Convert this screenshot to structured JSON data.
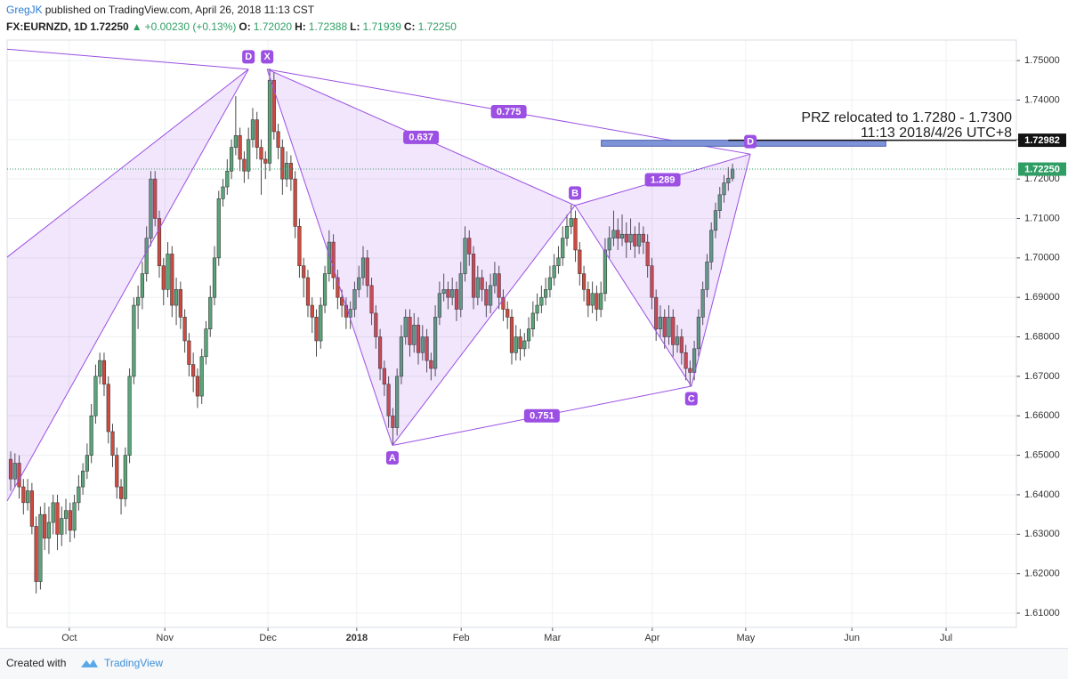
{
  "header": {
    "author": "GregJK",
    "published": "published on TradingView.com, April 26, 2018 11:13 CST",
    "symbol": "FX:EURNZD, 1D",
    "price": "1.72250",
    "change": "+0.00230 (+0.13%)",
    "fields": [
      {
        "name": "O:",
        "value": "1.72020"
      },
      {
        "name": "H:",
        "value": "1.72388"
      },
      {
        "name": "L:",
        "value": "1.71939"
      },
      {
        "name": "C:",
        "value": "1.72250"
      }
    ]
  },
  "footer": {
    "created": "Created with",
    "brand": "TradingView"
  },
  "chart_data": {
    "type": "candlestick",
    "up_color": "#5aa57a",
    "down_color": "#cf4a3f",
    "grid": true,
    "xlim": [
      -0.84,
      236.85
    ],
    "ylim": [
      1.6064,
      1.7552
    ],
    "xticks": [
      {
        "value": 13.8,
        "label": "Oct"
      },
      {
        "value": 36.3,
        "label": "Nov"
      },
      {
        "value": 60.6,
        "label": "Dec"
      },
      {
        "value": 81.5,
        "label": "2018"
      },
      {
        "value": 106.1,
        "label": "Feb"
      },
      {
        "value": 127.6,
        "label": "Mar"
      },
      {
        "value": 151.1,
        "label": "Apr"
      },
      {
        "value": 173.1,
        "label": "May"
      },
      {
        "value": 198.1,
        "label": "Jun"
      },
      {
        "value": 220.3,
        "label": "Jul"
      }
    ],
    "yticks": [
      {
        "value": 1.61,
        "label": "1.61000"
      },
      {
        "value": 1.62,
        "label": "1.62000"
      },
      {
        "value": 1.63,
        "label": "1.63000"
      },
      {
        "value": 1.64,
        "label": "1.64000"
      },
      {
        "value": 1.65,
        "label": "1.65000"
      },
      {
        "value": 1.66,
        "label": "1.66000"
      },
      {
        "value": 1.67,
        "label": "1.67000"
      },
      {
        "value": 1.68,
        "label": "1.68000"
      },
      {
        "value": 1.69,
        "label": "1.69000"
      },
      {
        "value": 1.7,
        "label": "1.70000"
      },
      {
        "value": 1.71,
        "label": "1.71000"
      },
      {
        "value": 1.72,
        "label": "1.72000"
      },
      {
        "value": 1.73,
        "label": "1.73000"
      },
      {
        "value": 1.74,
        "label": "1.74000"
      },
      {
        "value": 1.75,
        "label": "1.75000"
      }
    ],
    "ohlc": [
      [
        1.649,
        1.651,
        1.641,
        1.644
      ],
      [
        1.644,
        1.6505,
        1.642,
        1.648
      ],
      [
        1.648,
        1.65,
        1.639,
        1.642
      ],
      [
        1.642,
        1.644,
        1.635,
        1.638
      ],
      [
        1.638,
        1.644,
        1.636,
        1.641
      ],
      [
        1.641,
        1.643,
        1.63,
        1.632
      ],
      [
        1.632,
        1.6345,
        1.615,
        1.618
      ],
      [
        1.618,
        1.637,
        1.616,
        1.635
      ],
      [
        1.635,
        1.638,
        1.626,
        1.629
      ],
      [
        1.629,
        1.637,
        1.625,
        1.633
      ],
      [
        1.633,
        1.64,
        1.63,
        1.638
      ],
      [
        1.638,
        1.64,
        1.626,
        1.63
      ],
      [
        1.63,
        1.637,
        1.627,
        1.634
      ],
      [
        1.634,
        1.639,
        1.63,
        1.636
      ],
      [
        1.636,
        1.638,
        1.628,
        1.631
      ],
      [
        1.631,
        1.64,
        1.629,
        1.638
      ],
      [
        1.638,
        1.645,
        1.636,
        1.642
      ],
      [
        1.642,
        1.648,
        1.64,
        1.646
      ],
      [
        1.646,
        1.653,
        1.644,
        1.65
      ],
      [
        1.65,
        1.663,
        1.648,
        1.66
      ],
      [
        1.66,
        1.673,
        1.658,
        1.67
      ],
      [
        1.67,
        1.676,
        1.668,
        1.674
      ],
      [
        1.674,
        1.676,
        1.665,
        1.668
      ],
      [
        1.668,
        1.67,
        1.653,
        1.656
      ],
      [
        1.656,
        1.658,
        1.647,
        1.65
      ],
      [
        1.65,
        1.652,
        1.639,
        1.642
      ],
      [
        1.642,
        1.644,
        1.635,
        1.639
      ],
      [
        1.639,
        1.652,
        1.637,
        1.65
      ],
      [
        1.65,
        1.672,
        1.648,
        1.67
      ],
      [
        1.67,
        1.69,
        1.668,
        1.688
      ],
      [
        1.688,
        1.693,
        1.682,
        1.69
      ],
      [
        1.69,
        1.699,
        1.687,
        1.696
      ],
      [
        1.696,
        1.708,
        1.694,
        1.705
      ],
      [
        1.705,
        1.722,
        1.703,
        1.72
      ],
      [
        1.72,
        1.722,
        1.708,
        1.71
      ],
      [
        1.71,
        1.712,
        1.695,
        1.698
      ],
      [
        1.698,
        1.7,
        1.688,
        1.692
      ],
      [
        1.692,
        1.704,
        1.69,
        1.701
      ],
      [
        1.701,
        1.703,
        1.685,
        1.688
      ],
      [
        1.688,
        1.695,
        1.683,
        1.692
      ],
      [
        1.692,
        1.694,
        1.682,
        1.685
      ],
      [
        1.685,
        1.687,
        1.676,
        1.679
      ],
      [
        1.679,
        1.681,
        1.67,
        1.673
      ],
      [
        1.673,
        1.676,
        1.666,
        1.67
      ],
      [
        1.67,
        1.672,
        1.662,
        1.665
      ],
      [
        1.665,
        1.677,
        1.663,
        1.675
      ],
      [
        1.675,
        1.684,
        1.673,
        1.682
      ],
      [
        1.682,
        1.693,
        1.68,
        1.69
      ],
      [
        1.69,
        1.703,
        1.688,
        1.7
      ],
      [
        1.7,
        1.717,
        1.698,
        1.715
      ],
      [
        1.715,
        1.72,
        1.713,
        1.718
      ],
      [
        1.718,
        1.725,
        1.716,
        1.722
      ],
      [
        1.722,
        1.73,
        1.72,
        1.728
      ],
      [
        1.728,
        1.741,
        1.726,
        1.731
      ],
      [
        1.731,
        1.733,
        1.722,
        1.725
      ],
      [
        1.725,
        1.727,
        1.719,
        1.722
      ],
      [
        1.722,
        1.733,
        1.72,
        1.73
      ],
      [
        1.73,
        1.738,
        1.728,
        1.735
      ],
      [
        1.735,
        1.737,
        1.725,
        1.728
      ],
      [
        1.728,
        1.73,
        1.716,
        1.725
      ],
      [
        1.725,
        1.727,
        1.72,
        1.724
      ],
      [
        1.724,
        1.748,
        1.722,
        1.745
      ],
      [
        1.745,
        1.747,
        1.73,
        1.732
      ],
      [
        1.732,
        1.734,
        1.725,
        1.728
      ],
      [
        1.728,
        1.73,
        1.716,
        1.72
      ],
      [
        1.72,
        1.727,
        1.718,
        1.724
      ],
      [
        1.724,
        1.726,
        1.717,
        1.72
      ],
      [
        1.72,
        1.722,
        1.705,
        1.708
      ],
      [
        1.708,
        1.71,
        1.695,
        1.698
      ],
      [
        1.698,
        1.7,
        1.69,
        1.695
      ],
      [
        1.695,
        1.697,
        1.685,
        1.688
      ],
      [
        1.688,
        1.69,
        1.681,
        1.685
      ],
      [
        1.685,
        1.687,
        1.675,
        1.679
      ],
      [
        1.679,
        1.69,
        1.677,
        1.688
      ],
      [
        1.688,
        1.698,
        1.686,
        1.696
      ],
      [
        1.696,
        1.707,
        1.694,
        1.704
      ],
      [
        1.704,
        1.706,
        1.692,
        1.695
      ],
      [
        1.695,
        1.697,
        1.687,
        1.69
      ],
      [
        1.69,
        1.692,
        1.685,
        1.688
      ],
      [
        1.688,
        1.69,
        1.682,
        1.685
      ],
      [
        1.685,
        1.689,
        1.682,
        1.687
      ],
      [
        1.687,
        1.694,
        1.685,
        1.692
      ],
      [
        1.692,
        1.698,
        1.69,
        1.695
      ],
      [
        1.695,
        1.703,
        1.693,
        1.7
      ],
      [
        1.7,
        1.702,
        1.69,
        1.693
      ],
      [
        1.693,
        1.695,
        1.683,
        1.686
      ],
      [
        1.686,
        1.688,
        1.677,
        1.68
      ],
      [
        1.68,
        1.682,
        1.669,
        1.672
      ],
      [
        1.672,
        1.674,
        1.665,
        1.668
      ],
      [
        1.668,
        1.67,
        1.657,
        1.66
      ],
      [
        1.66,
        1.662,
        1.6525,
        1.657
      ],
      [
        1.657,
        1.672,
        1.655,
        1.67
      ],
      [
        1.67,
        1.683,
        1.668,
        1.68
      ],
      [
        1.68,
        1.687,
        1.678,
        1.685
      ],
      [
        1.685,
        1.687,
        1.675,
        1.678
      ],
      [
        1.678,
        1.686,
        1.676,
        1.683
      ],
      [
        1.683,
        1.685,
        1.673,
        1.676
      ],
      [
        1.676,
        1.683,
        1.674,
        1.68
      ],
      [
        1.68,
        1.682,
        1.671,
        1.674
      ],
      [
        1.674,
        1.676,
        1.669,
        1.672
      ],
      [
        1.672,
        1.688,
        1.67,
        1.685
      ],
      [
        1.685,
        1.694,
        1.683,
        1.691
      ],
      [
        1.691,
        1.696,
        1.689,
        1.692
      ],
      [
        1.692,
        1.694,
        1.687,
        1.69
      ],
      [
        1.69,
        1.695,
        1.688,
        1.692
      ],
      [
        1.692,
        1.694,
        1.684,
        1.687
      ],
      [
        1.687,
        1.699,
        1.685,
        1.696
      ],
      [
        1.696,
        1.708,
        1.694,
        1.705
      ],
      [
        1.705,
        1.707,
        1.698,
        1.701
      ],
      [
        1.701,
        1.703,
        1.687,
        1.69
      ],
      [
        1.69,
        1.698,
        1.688,
        1.695
      ],
      [
        1.695,
        1.697,
        1.689,
        1.692
      ],
      [
        1.692,
        1.694,
        1.685,
        1.688
      ],
      [
        1.688,
        1.696,
        1.686,
        1.693
      ],
      [
        1.693,
        1.699,
        1.691,
        1.696
      ],
      [
        1.696,
        1.698,
        1.687,
        1.69
      ],
      [
        1.69,
        1.692,
        1.684,
        1.687
      ],
      [
        1.687,
        1.689,
        1.682,
        1.685
      ],
      [
        1.685,
        1.687,
        1.673,
        1.676
      ],
      [
        1.676,
        1.683,
        1.674,
        1.68
      ],
      [
        1.68,
        1.682,
        1.674,
        1.677
      ],
      [
        1.677,
        1.681,
        1.675,
        1.679
      ],
      [
        1.679,
        1.685,
        1.677,
        1.682
      ],
      [
        1.682,
        1.689,
        1.68,
        1.686
      ],
      [
        1.686,
        1.691,
        1.684,
        1.688
      ],
      [
        1.688,
        1.693,
        1.686,
        1.69
      ],
      [
        1.69,
        1.695,
        1.688,
        1.692
      ],
      [
        1.692,
        1.698,
        1.69,
        1.695
      ],
      [
        1.695,
        1.701,
        1.693,
        1.698
      ],
      [
        1.698,
        1.703,
        1.696,
        1.7
      ],
      [
        1.7,
        1.708,
        1.698,
        1.705
      ],
      [
        1.705,
        1.711,
        1.703,
        1.708
      ],
      [
        1.708,
        1.7135,
        1.706,
        1.71
      ],
      [
        1.71,
        1.712,
        1.699,
        1.702
      ],
      [
        1.702,
        1.704,
        1.693,
        1.696
      ],
      [
        1.696,
        1.698,
        1.689,
        1.692
      ],
      [
        1.692,
        1.694,
        1.685,
        1.688
      ],
      [
        1.688,
        1.694,
        1.686,
        1.691
      ],
      [
        1.691,
        1.693,
        1.684,
        1.687
      ],
      [
        1.687,
        1.694,
        1.685,
        1.691
      ],
      [
        1.691,
        1.705,
        1.689,
        1.702
      ],
      [
        1.702,
        1.708,
        1.7,
        1.705
      ],
      [
        1.705,
        1.712,
        1.703,
        1.707
      ],
      [
        1.707,
        1.71,
        1.702,
        1.705
      ],
      [
        1.705,
        1.711,
        1.703,
        1.706
      ],
      [
        1.706,
        1.709,
        1.7,
        1.704
      ],
      [
        1.704,
        1.71,
        1.702,
        1.706
      ],
      [
        1.706,
        1.708,
        1.7,
        1.703
      ],
      [
        1.703,
        1.709,
        1.701,
        1.706
      ],
      [
        1.706,
        1.708,
        1.701,
        1.704
      ],
      [
        1.704,
        1.706,
        1.695,
        1.698
      ],
      [
        1.698,
        1.7,
        1.687,
        1.69
      ],
      [
        1.69,
        1.692,
        1.679,
        1.682
      ],
      [
        1.682,
        1.688,
        1.68,
        1.685
      ],
      [
        1.685,
        1.687,
        1.677,
        1.68
      ],
      [
        1.68,
        1.688,
        1.678,
        1.685
      ],
      [
        1.685,
        1.687,
        1.675,
        1.678
      ],
      [
        1.678,
        1.683,
        1.676,
        1.68
      ],
      [
        1.68,
        1.682,
        1.673,
        1.676
      ],
      [
        1.676,
        1.678,
        1.669,
        1.672
      ],
      [
        1.672,
        1.674,
        1.6675,
        1.671
      ],
      [
        1.671,
        1.679,
        1.669,
        1.677
      ],
      [
        1.677,
        1.687,
        1.675,
        1.685
      ],
      [
        1.685,
        1.694,
        1.683,
        1.692
      ],
      [
        1.692,
        1.701,
        1.69,
        1.699
      ],
      [
        1.699,
        1.709,
        1.697,
        1.707
      ],
      [
        1.707,
        1.714,
        1.705,
        1.712
      ],
      [
        1.712,
        1.718,
        1.71,
        1.716
      ],
      [
        1.716,
        1.721,
        1.714,
        1.719
      ],
      [
        1.719,
        1.723,
        1.717,
        1.7202
      ],
      [
        1.7202,
        1.72388,
        1.71939,
        1.7225
      ]
    ],
    "price_line": {
      "value": 1.7225,
      "label": "1.72250",
      "color": "#2f9e64"
    },
    "level_line": {
      "value": 1.72982,
      "label": "1.72982",
      "x": 169.0,
      "color": "#131313"
    },
    "zone": {
      "x": [
        139.1,
        206.1
      ],
      "y": [
        1.7283,
        1.7298
      ],
      "color": "#7f93d8"
    },
    "annotation": [
      "PRZ relocated to 1.7280 - 1.7300",
      "11:13 2018/4/26 UTC+8"
    ],
    "pattern": {
      "color": "#9b4fe3",
      "points": [
        {
          "label": "X",
          "x": 60.4,
          "y": 1.7478
        },
        {
          "label": "A",
          "x": 89.9,
          "y": 1.6525
        },
        {
          "label": "B",
          "x": 132.9,
          "y": 1.7133
        },
        {
          "label": "C",
          "x": 160.3,
          "y": 1.6675
        },
        {
          "label": "D",
          "x": 174.2,
          "y": 1.7263
        }
      ],
      "ratios": [
        0.637,
        0.775,
        0.751,
        1.289
      ]
    },
    "prior_pattern": {
      "label": "D",
      "x": 56.0,
      "y": 1.7478,
      "legs": [
        {
          "x": -0.84,
          "y": 1.7529
        },
        {
          "x": -0.84,
          "y": 1.7002
        },
        {
          "x": -0.84,
          "y": 1.6384
        }
      ]
    }
  }
}
